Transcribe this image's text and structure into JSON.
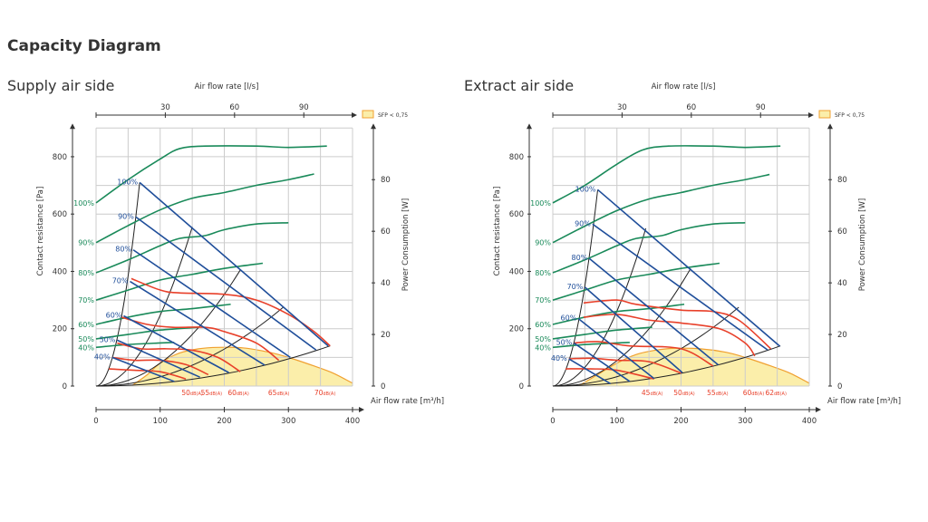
{
  "page_title": "Capacity Diagram",
  "colors": {
    "power": "#1a8a5a",
    "fan_speed": "#1f4e9a",
    "sound": "#e8402a",
    "system": "#222222",
    "sfp_fill": "#fbeeaa",
    "sfp_stroke": "#f0a030",
    "grid": "#cccccc"
  },
  "chart_data": [
    {
      "type": "line",
      "title": "Supply air side",
      "top_axis": {
        "label": "Air flow rate [l/s]",
        "ticks": [
          30,
          60,
          90
        ]
      },
      "xlabel": "Air flow rate [m³/h]",
      "xlim": [
        0,
        400
      ],
      "xticks": [
        0,
        100,
        200,
        300,
        400
      ],
      "ylabel": "Contact resistance [Pa]",
      "ylim": [
        0,
        900
      ],
      "yticks": [
        0,
        200,
        400,
        600,
        800
      ],
      "y2label": "Power Consumption [W]",
      "y2lim": [
        0,
        100
      ],
      "y2ticks": [
        0,
        20,
        40,
        60,
        80
      ],
      "grid": true,
      "legend": {
        "label": "SFP < 0,75",
        "placement": "top-right"
      },
      "sfp_area": [
        [
          55,
          0
        ],
        [
          80,
          40
        ],
        [
          100,
          80
        ],
        [
          130,
          115
        ],
        [
          160,
          130
        ],
        [
          190,
          135
        ],
        [
          230,
          133
        ],
        [
          270,
          118
        ],
        [
          300,
          100
        ],
        [
          340,
          70
        ],
        [
          370,
          45
        ],
        [
          400,
          10
        ],
        [
          400,
          0
        ]
      ],
      "power_curves": [
        {
          "label": "100%",
          "points": [
            [
              0,
              71
            ],
            [
              50,
              80
            ],
            [
              100,
              88
            ],
            [
              130,
              92
            ],
            [
              170,
              93
            ],
            [
              250,
              93
            ],
            [
              300,
              92.5
            ],
            [
              360,
              93
            ]
          ]
        },
        {
          "label": "90%",
          "points": [
            [
              0,
              55.6
            ],
            [
              50,
              62.2
            ],
            [
              100,
              68.3
            ],
            [
              150,
              72.8
            ],
            [
              200,
              75
            ],
            [
              250,
              77.8
            ],
            [
              300,
              80
            ],
            [
              340,
              82.2
            ]
          ]
        },
        {
          "label": "80%",
          "points": [
            [
              0,
              43.9
            ],
            [
              50,
              48.9
            ],
            [
              100,
              54.4
            ],
            [
              130,
              57.2
            ],
            [
              170,
              58.3
            ],
            [
              200,
              60.6
            ],
            [
              250,
              62.8
            ],
            [
              300,
              63.3
            ]
          ]
        },
        {
          "label": "70%",
          "points": [
            [
              0,
              33.3
            ],
            [
              50,
              37.2
            ],
            [
              100,
              41.1
            ],
            [
              150,
              43.3
            ],
            [
              200,
              45.6
            ],
            [
              260,
              47.6
            ]
          ]
        },
        {
          "label": "60%",
          "points": [
            [
              0,
              23.9
            ],
            [
              50,
              26.7
            ],
            [
              100,
              28.9
            ],
            [
              150,
              30
            ],
            [
              210,
              31.7
            ]
          ]
        },
        {
          "label": "50%",
          "points": [
            [
              0,
              18.3
            ],
            [
              50,
              20
            ],
            [
              100,
              21.7
            ],
            [
              160,
              22.8
            ]
          ]
        },
        {
          "label": "40%",
          "points": [
            [
              0,
              15
            ],
            [
              50,
              16.1
            ],
            [
              100,
              16.7
            ],
            [
              122,
              16.9
            ]
          ]
        }
      ],
      "fan_speed_lines": [
        {
          "label": "100%",
          "points": [
            [
              68,
              710
            ],
            [
              362,
              140
            ]
          ]
        },
        {
          "label": "90%",
          "points": [
            [
              62,
              590
            ],
            [
              343,
              126
            ]
          ]
        },
        {
          "label": "80%",
          "points": [
            [
              58,
              475
            ],
            [
              303,
              100
            ]
          ]
        },
        {
          "label": "70%",
          "points": [
            [
              53,
              365
            ],
            [
              263,
              73
            ]
          ]
        },
        {
          "label": "60%",
          "points": [
            [
              43,
              245
            ],
            [
              207,
              47
            ]
          ]
        },
        {
          "label": "50%",
          "points": [
            [
              33,
              160
            ],
            [
              162,
              31
            ]
          ]
        },
        {
          "label": "40%",
          "points": [
            [
              25,
              100
            ],
            [
              122,
              16
            ]
          ]
        }
      ],
      "system_curves": [
        [
          68,
          710
        ],
        [
          150,
          555
        ],
        [
          225,
          405
        ],
        [
          292,
          275
        ],
        [
          365,
          140
        ]
      ],
      "sound_curves": [
        {
          "value": "50",
          "unit": "dB(A)",
          "label_x": 150,
          "points": [
            [
              20,
              60
            ],
            [
              60,
              55
            ],
            [
              100,
              50
            ],
            [
              140,
              25
            ]
          ]
        },
        {
          "value": "55",
          "unit": "dB(A)",
          "label_x": 180,
          "points": [
            [
              25,
              100
            ],
            [
              60,
              90
            ],
            [
              100,
              90
            ],
            [
              140,
              75
            ],
            [
              175,
              40
            ]
          ]
        },
        {
          "value": "60",
          "unit": "dB(A)",
          "label_x": 222,
          "points": [
            [
              33,
              150
            ],
            [
              70,
              130
            ],
            [
              110,
              130
            ],
            [
              150,
              125
            ],
            [
              190,
              100
            ],
            [
              225,
              50
            ]
          ]
        },
        {
          "value": "65",
          "unit": "dB(A)",
          "label_x": 285,
          "points": [
            [
              40,
              240
            ],
            [
              80,
              215
            ],
            [
              120,
              205
            ],
            [
              170,
              205
            ],
            [
              200,
              190
            ],
            [
              250,
              150
            ],
            [
              285,
              90
            ]
          ]
        },
        {
          "value": "70",
          "unit": "dB(A)",
          "label_x": 357,
          "points": [
            [
              55,
              375
            ],
            [
              100,
              335
            ],
            [
              130,
              325
            ],
            [
              200,
              320
            ],
            [
              250,
              300
            ],
            [
              300,
              250
            ],
            [
              340,
              190
            ],
            [
              365,
              140
            ]
          ]
        }
      ]
    },
    {
      "type": "line",
      "title": "Extract air side",
      "top_axis": {
        "label": "Air flow rate [l/s]",
        "ticks": [
          30,
          60,
          90
        ]
      },
      "xlabel": "Air flow rate [m³/h]",
      "xlim": [
        0,
        400
      ],
      "xticks": [
        0,
        100,
        200,
        300,
        400
      ],
      "ylabel": "Contact resistance [Pa]",
      "ylim": [
        0,
        900
      ],
      "yticks": [
        0,
        200,
        400,
        600,
        800
      ],
      "y2label": "Power Consumption [W]",
      "y2lim": [
        0,
        100
      ],
      "y2ticks": [
        0,
        20,
        40,
        60,
        80
      ],
      "grid": true,
      "legend": {
        "label": "SFP < 0,75",
        "placement": "top-right"
      },
      "sfp_area": [
        [
          40,
          0
        ],
        [
          70,
          40
        ],
        [
          100,
          80
        ],
        [
          130,
          110
        ],
        [
          160,
          125
        ],
        [
          190,
          132
        ],
        [
          230,
          130
        ],
        [
          270,
          118
        ],
        [
          300,
          100
        ],
        [
          340,
          70
        ],
        [
          370,
          45
        ],
        [
          400,
          10
        ],
        [
          400,
          0
        ]
      ],
      "power_curves": [
        {
          "label": "100%",
          "points": [
            [
              0,
              71
            ],
            [
              50,
              77.8
            ],
            [
              100,
              86
            ],
            [
              140,
              91.5
            ],
            [
              180,
              93
            ],
            [
              250,
              93
            ],
            [
              300,
              92.5
            ],
            [
              355,
              93
            ]
          ]
        },
        {
          "label": "90%",
          "points": [
            [
              0,
              55.6
            ],
            [
              50,
              62
            ],
            [
              100,
              68
            ],
            [
              150,
              72.5
            ],
            [
              200,
              75
            ],
            [
              250,
              77.8
            ],
            [
              300,
              80
            ],
            [
              338,
              82
            ]
          ]
        },
        {
          "label": "80%",
          "points": [
            [
              0,
              43.9
            ],
            [
              50,
              48.9
            ],
            [
              100,
              54.4
            ],
            [
              130,
              57.2
            ],
            [
              170,
              58.3
            ],
            [
              200,
              60.6
            ],
            [
              250,
              62.8
            ],
            [
              300,
              63.3
            ]
          ]
        },
        {
          "label": "70%",
          "points": [
            [
              0,
              33.3
            ],
            [
              50,
              37.2
            ],
            [
              100,
              41.1
            ],
            [
              150,
              43.3
            ],
            [
              200,
              45.6
            ],
            [
              260,
              47.6
            ]
          ]
        },
        {
          "label": "60%",
          "points": [
            [
              0,
              23.9
            ],
            [
              50,
              26.7
            ],
            [
              100,
              28.9
            ],
            [
              150,
              30
            ],
            [
              205,
              31.7
            ]
          ]
        },
        {
          "label": "50%",
          "points": [
            [
              0,
              18.3
            ],
            [
              50,
              20
            ],
            [
              100,
              21.7
            ],
            [
              155,
              22.8
            ]
          ]
        },
        {
          "label": "40%",
          "points": [
            [
              0,
              15
            ],
            [
              50,
              16.1
            ],
            [
              100,
              16.7
            ],
            [
              120,
              16.9
            ]
          ]
        }
      ],
      "fan_speed_lines": [
        {
          "label": "100%",
          "points": [
            [
              70,
              685
            ],
            [
              354,
              139
            ]
          ]
        },
        {
          "label": "90%",
          "points": [
            [
              62,
              565
            ],
            [
              335,
              126
            ]
          ]
        },
        {
          "label": "80%",
          "points": [
            [
              57,
              445
            ],
            [
              258,
              74
            ]
          ]
        },
        {
          "label": "70%",
          "points": [
            [
              50,
              345
            ],
            [
              202,
              47
            ]
          ]
        },
        {
          "label": "60%",
          "points": [
            [
              40,
              235
            ],
            [
              158,
              26
            ]
          ]
        },
        {
          "label": "50%",
          "points": [
            [
              33,
              150
            ],
            [
              120,
              16
            ]
          ]
        },
        {
          "label": "40%",
          "points": [
            [
              25,
              95
            ],
            [
              90,
              8
            ]
          ]
        }
      ],
      "system_curves": [
        [
          70,
          685
        ],
        [
          145,
          550
        ],
        [
          215,
          410
        ],
        [
          290,
          275
        ],
        [
          355,
          140
        ]
      ],
      "sound_curves": [
        {
          "value": "45",
          "unit": "dB(A)",
          "label_x": 155,
          "points": [
            [
              20,
              60
            ],
            [
              60,
              60
            ],
            [
              100,
              55
            ],
            [
              158,
              25
            ]
          ]
        },
        {
          "value": "50",
          "unit": "dB(A)",
          "label_x": 205,
          "points": [
            [
              25,
              95
            ],
            [
              60,
              97
            ],
            [
              100,
              90
            ],
            [
              150,
              85
            ],
            [
              200,
              45
            ]
          ]
        },
        {
          "value": "55",
          "unit": "dB(A)",
          "label_x": 257,
          "points": [
            [
              33,
              150
            ],
            [
              70,
              155
            ],
            [
              120,
              140
            ],
            [
              200,
              130
            ],
            [
              250,
              70
            ]
          ]
        },
        {
          "value": "60",
          "unit": "dB(A)",
          "label_x": 313,
          "points": [
            [
              48,
              240
            ],
            [
              100,
              250
            ],
            [
              150,
              230
            ],
            [
              200,
              220
            ],
            [
              260,
              200
            ],
            [
              300,
              150
            ],
            [
              315,
              105
            ]
          ]
        },
        {
          "value": "62",
          "unit": "dB(A)",
          "label_x": 348,
          "points": [
            [
              48,
              290
            ],
            [
              100,
              300
            ],
            [
              130,
              285
            ],
            [
              200,
              265
            ],
            [
              250,
              260
            ],
            [
              290,
              230
            ],
            [
              340,
              130
            ]
          ]
        }
      ]
    }
  ]
}
